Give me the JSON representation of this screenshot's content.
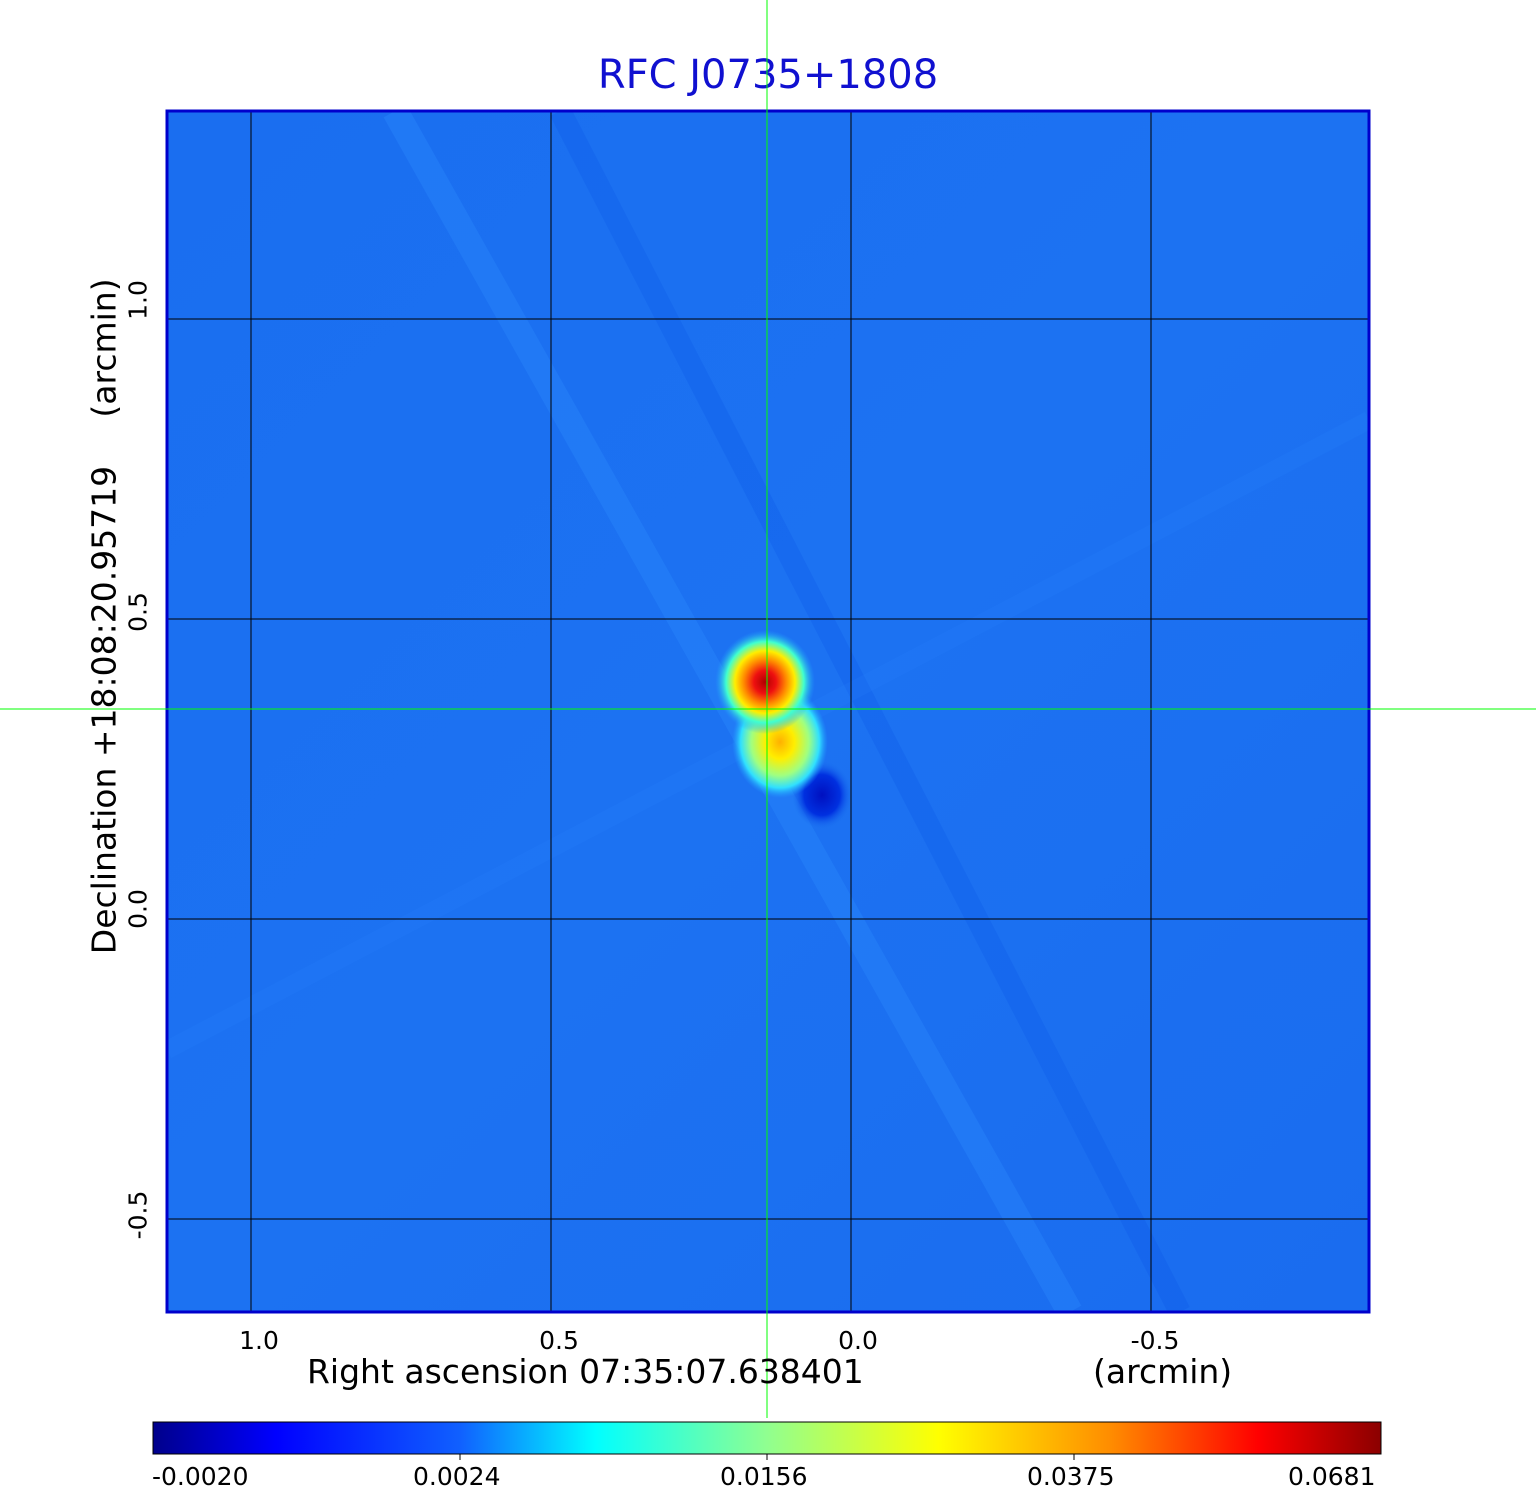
{
  "title": "RFC J0735+1808",
  "y_axis": {
    "label": "Declination  +18:08:20.95719",
    "unit": "(arcmin)",
    "ticks": [
      "1.0",
      "0.5",
      "0.0",
      "-0.5"
    ]
  },
  "x_axis": {
    "label": "Right ascension  07:35:07.638401",
    "unit": "(arcmin)",
    "ticks": [
      "1.0",
      "0.5",
      "0.0",
      "-0.5"
    ]
  },
  "colorbar": {
    "ticks": [
      "-0.0020",
      "0.0024",
      "0.0156",
      "0.0375",
      "0.0681"
    ]
  },
  "colors": {
    "title": "#1010d0",
    "frame": "#0000cc",
    "crosshair": "#00ff00",
    "grid": "#000000"
  },
  "chart_data": {
    "type": "heatmap",
    "title": "RFC J0735+1808",
    "xlabel": "Right ascension  07:35:07.638401 (arcmin)",
    "ylabel": "Declination  +18:08:20.95719 (arcmin)",
    "x_ticks": [
      1.0,
      0.5,
      0.0,
      -0.5
    ],
    "y_ticks": [
      1.0,
      0.5,
      0.0,
      -0.5
    ],
    "grid": true,
    "colormap": "jet",
    "colorbar_ticks": [
      -0.002,
      0.0024,
      0.0156,
      0.0375,
      0.0681
    ],
    "peak_value": 0.0681,
    "components": [
      {
        "x": 0.15,
        "y": 0.4,
        "value": 0.0681
      },
      {
        "x": 0.11,
        "y": 0.29,
        "value": 0.0375
      }
    ],
    "negative_feature": {
      "x": 0.05,
      "y": 0.2
    }
  }
}
